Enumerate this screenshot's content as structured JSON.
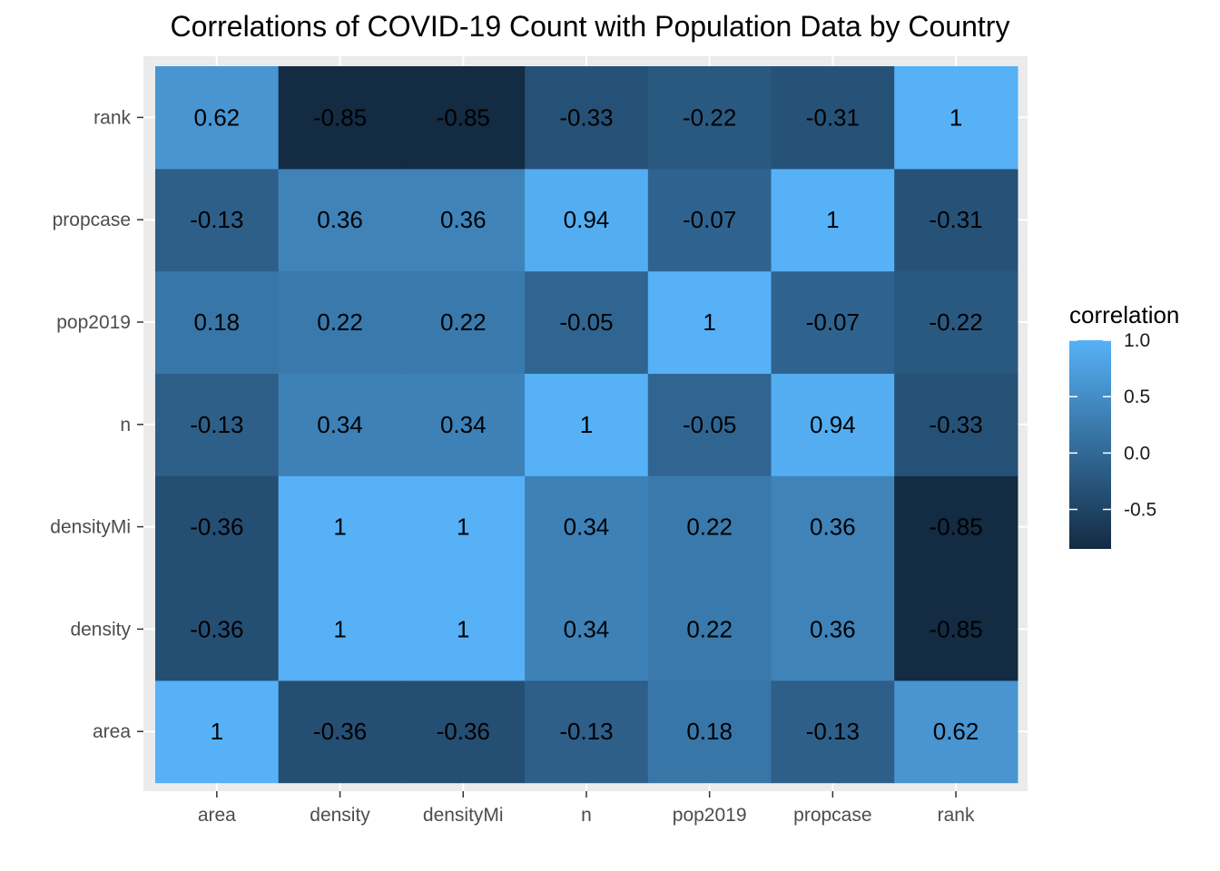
{
  "chart_data": {
    "type": "heatmap",
    "title": "Correlations of COVID-19 Count with Population Data by Country",
    "xlabel": "",
    "ylabel": "",
    "x_categories": [
      "area",
      "density",
      "densityMi",
      "n",
      "pop2019",
      "propcase",
      "rank"
    ],
    "y_categories": [
      "area",
      "density",
      "densityMi",
      "n",
      "pop2019",
      "propcase",
      "rank"
    ],
    "values": [
      [
        1,
        -0.36,
        -0.36,
        -0.13,
        0.18,
        -0.13,
        0.62
      ],
      [
        -0.36,
        1,
        1,
        0.34,
        0.22,
        0.36,
        -0.85
      ],
      [
        -0.36,
        1,
        1,
        0.34,
        0.22,
        0.36,
        -0.85
      ],
      [
        -0.13,
        0.34,
        0.34,
        1,
        -0.05,
        0.94,
        -0.33
      ],
      [
        0.18,
        0.22,
        0.22,
        -0.05,
        1,
        -0.07,
        -0.22
      ],
      [
        -0.13,
        0.36,
        0.36,
        0.94,
        -0.07,
        1,
        -0.31
      ],
      [
        0.62,
        -0.85,
        -0.85,
        -0.33,
        -0.22,
        -0.31,
        1
      ]
    ],
    "value_labels": [
      [
        "1",
        "-0.36",
        "-0.36",
        "-0.13",
        "0.18",
        "-0.13",
        "0.62"
      ],
      [
        "-0.36",
        "1",
        "1",
        "0.34",
        "0.22",
        "0.36",
        "-0.85"
      ],
      [
        "-0.36",
        "1",
        "1",
        "0.34",
        "0.22",
        "0.36",
        "-0.85"
      ],
      [
        "-0.13",
        "0.34",
        "0.34",
        "1",
        "-0.05",
        "0.94",
        "-0.33"
      ],
      [
        "0.18",
        "0.22",
        "0.22",
        "-0.05",
        "1",
        "-0.07",
        "-0.22"
      ],
      [
        "-0.13",
        "0.36",
        "0.36",
        "0.94",
        "-0.07",
        "1",
        "-0.31"
      ],
      [
        "0.62",
        "-0.85",
        "-0.85",
        "-0.33",
        "-0.22",
        "-0.31",
        "1"
      ]
    ],
    "legend": {
      "title": "correlation",
      "placement": "right",
      "ticks": [
        1.0,
        0.5,
        0.0,
        -0.5
      ],
      "tick_labels": [
        "1.0",
        "0.5",
        "0.0",
        "-0.5"
      ],
      "range": [
        -0.85,
        1
      ]
    },
    "color_scale": {
      "low": "#132B43",
      "high": "#56B1F7"
    },
    "panel_background": "#EBEBEB",
    "grid": true
  }
}
